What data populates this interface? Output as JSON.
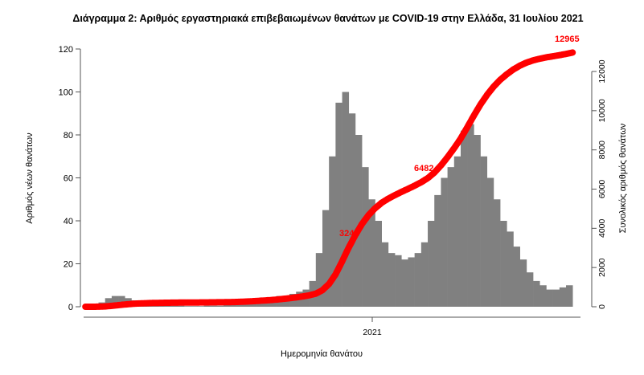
{
  "chart_data": {
    "type": "bar",
    "title": "Διάγραμμα 2: Αριθμός εργαστηριακά επιβεβαιωμένων θανάτων με COVID-19 στην Ελλάδα, 31 Ιουλίου 2021",
    "xlabel": "Ημερομηνία θανάτου",
    "ylabel": "Αριθμός νέων θανάτων",
    "y2label": "Συνολικός αριθμός θανάτων",
    "x_tick_labels": [
      "2021"
    ],
    "y_ticks": [
      0,
      20,
      40,
      60,
      80,
      100,
      120
    ],
    "y2_ticks": [
      0,
      2000,
      4000,
      6000,
      8000,
      10000,
      12000
    ],
    "ylim": [
      0,
      120
    ],
    "y2lim": [
      0,
      12000
    ],
    "x_range": [
      "2020-03-02",
      "2021-07-31"
    ],
    "bar_color": "#808080",
    "line_color": "#ff0000",
    "bar_series": {
      "name": "",
      "period": "weekly average of daily deaths, weeks starting Monday",
      "start_week": "2020-03-02",
      "values": [
        0,
        0.5,
        2,
        4,
        5,
        5,
        4,
        3,
        2,
        1.5,
        1,
        1,
        0.5,
        0.5,
        0.5,
        0.3,
        0.3,
        0.3,
        0.5,
        0.5,
        0.5,
        1,
        1,
        2,
        2,
        3,
        3,
        3,
        4,
        5,
        5,
        6,
        7,
        8,
        12,
        25,
        45,
        70,
        95,
        100,
        90,
        80,
        65,
        50,
        40,
        30,
        25,
        24,
        22,
        23,
        25,
        30,
        40,
        52,
        60,
        65,
        70,
        82,
        85,
        80,
        70,
        60,
        50,
        40,
        35,
        28,
        22,
        16,
        12,
        10,
        8,
        8,
        9,
        10
      ]
    },
    "line_series": {
      "name": "cumulative",
      "final_value": 12965
    },
    "annotations": [
      "3241",
      "6482",
      "12965"
    ]
  }
}
